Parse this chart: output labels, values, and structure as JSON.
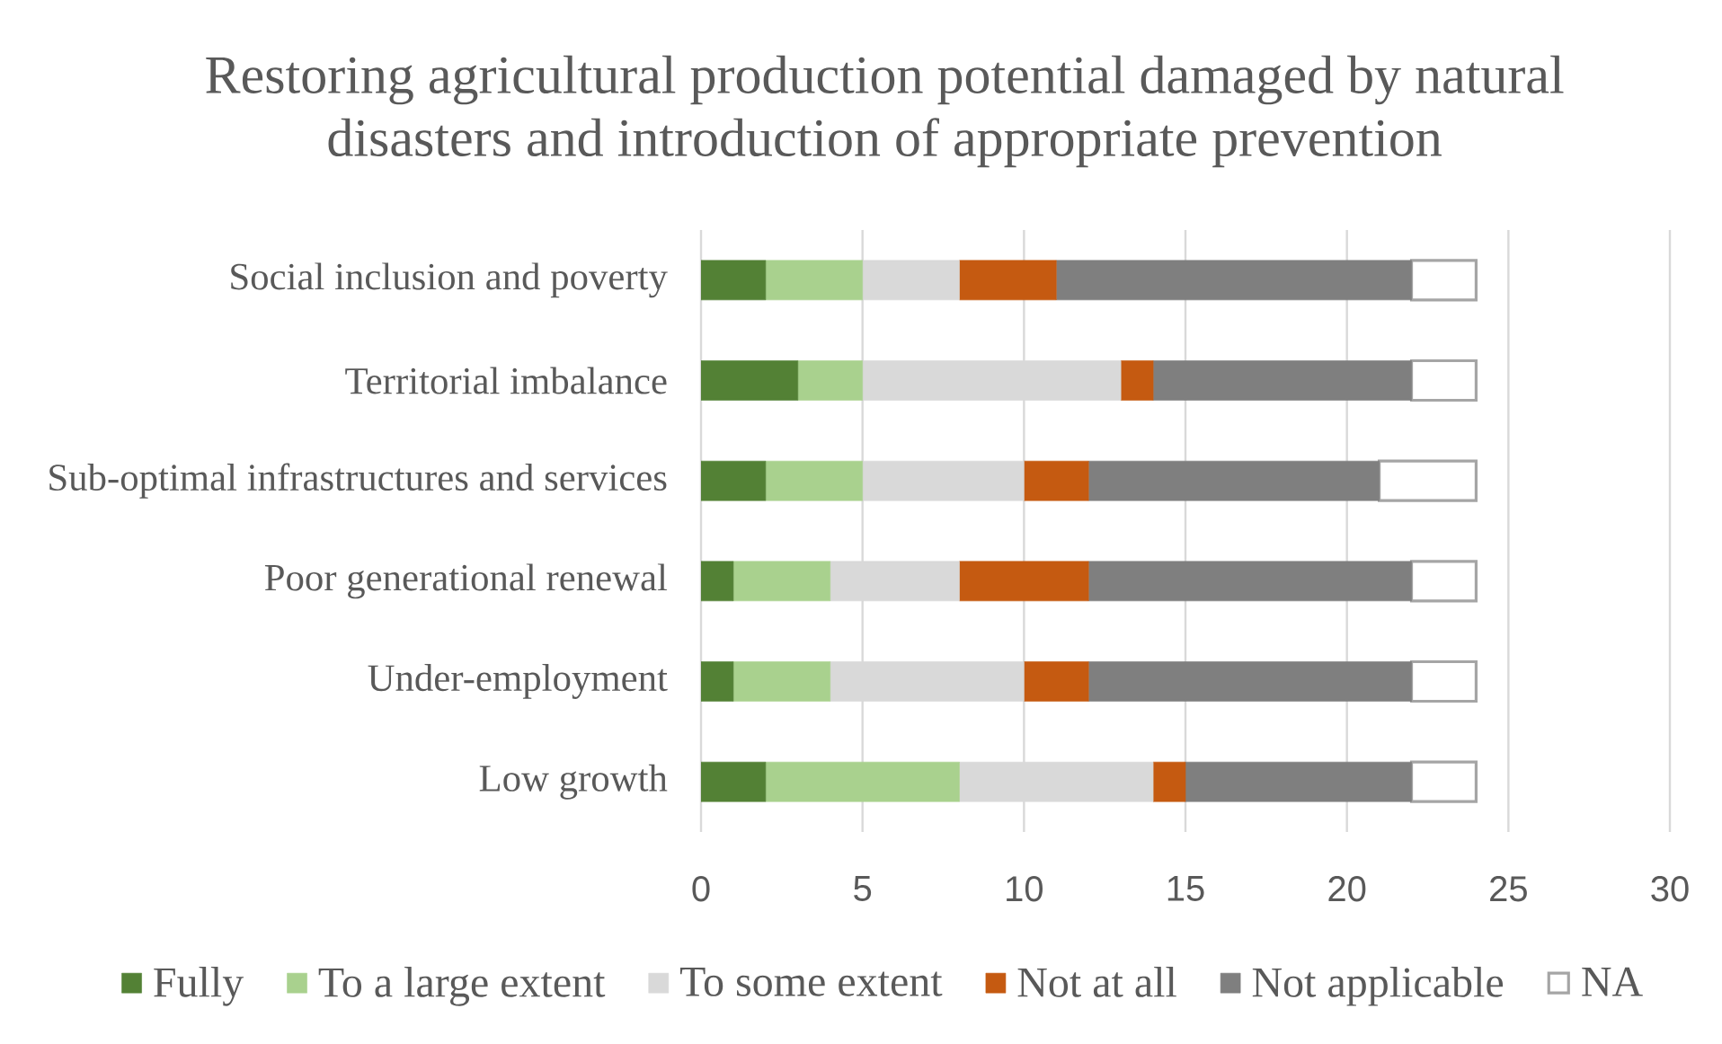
{
  "chart_data": {
    "type": "bar",
    "orientation": "horizontal",
    "stacked": true,
    "title": "Restoring agricultural production potential damaged by natural disasters and introduction of appropriate prevention",
    "categories": [
      "Social inclusion and poverty",
      "Territorial imbalance",
      "Sub-optimal infrastructures and services",
      "Poor generational renewal",
      "Under-employment",
      "Low growth"
    ],
    "series": [
      {
        "name": "Fully",
        "color": "#538135",
        "values": [
          2,
          3,
          2,
          1,
          1,
          2
        ]
      },
      {
        "name": "To a large extent",
        "color": "#a9d18e",
        "values": [
          3,
          2,
          3,
          3,
          3,
          6
        ]
      },
      {
        "name": "To some extent",
        "color": "#d9d9d9",
        "values": [
          3,
          8,
          5,
          4,
          6,
          6
        ]
      },
      {
        "name": "Not at all",
        "color": "#c55a11",
        "values": [
          3,
          1,
          2,
          4,
          2,
          1
        ]
      },
      {
        "name": "Not applicable",
        "color": "#7f7f7f",
        "values": [
          11,
          8,
          9,
          10,
          10,
          7
        ]
      },
      {
        "name": "NA",
        "color": "#ffffff",
        "values": [
          2,
          2,
          3,
          2,
          2,
          2
        ]
      }
    ],
    "xlim": [
      0,
      30
    ],
    "xticks": [
      0,
      5,
      10,
      15,
      20,
      25,
      30
    ],
    "grid": "x",
    "legend": "bottom"
  }
}
